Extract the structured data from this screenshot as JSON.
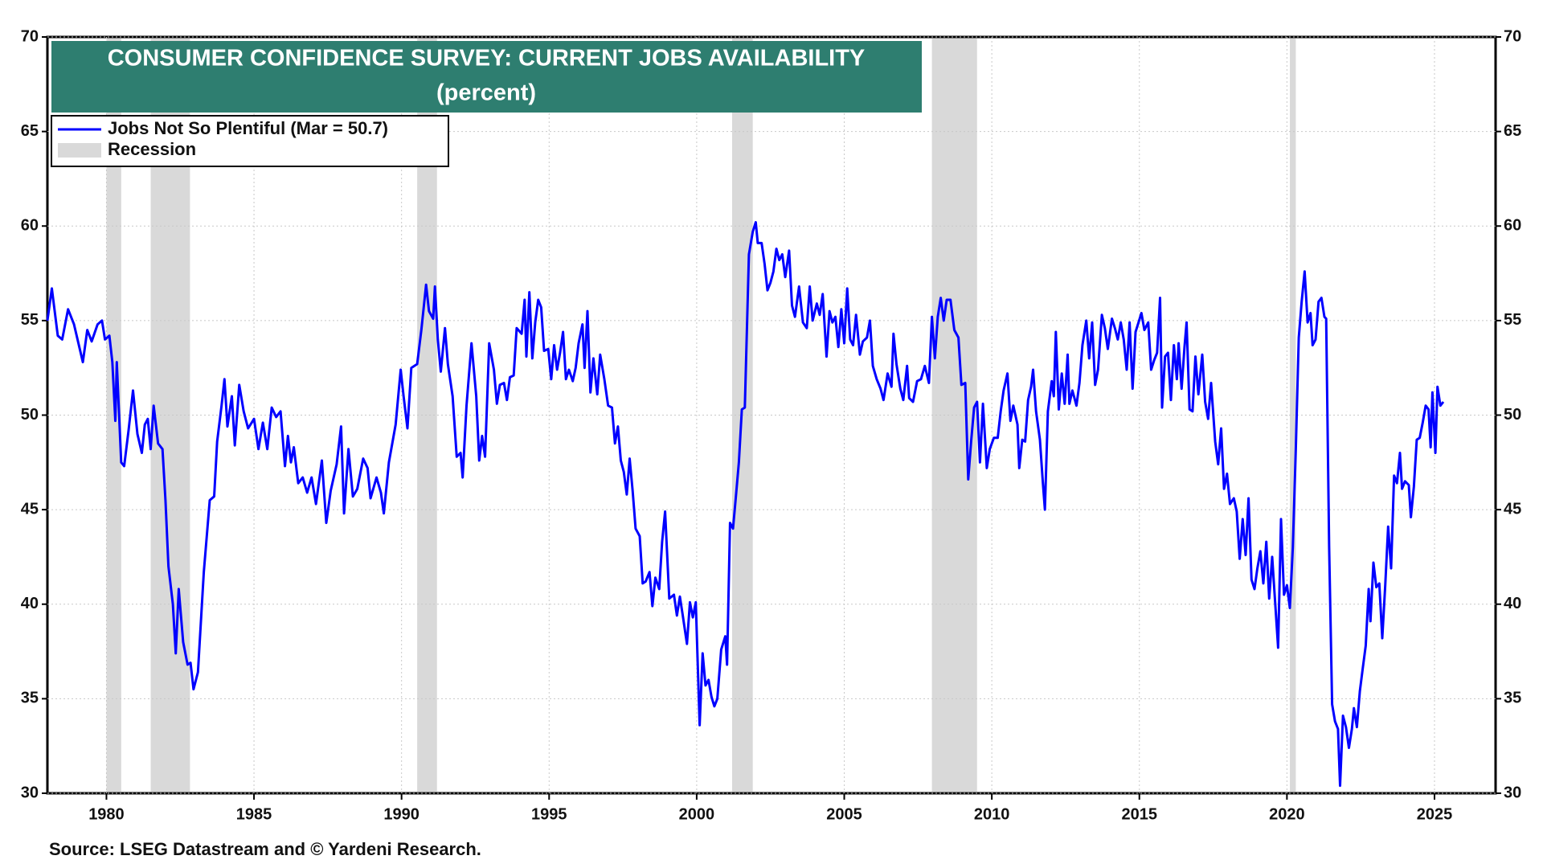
{
  "chart_data": {
    "type": "line",
    "title": "CONSUMER CONFIDENCE SURVEY: CURRENT JOBS AVAILABILITY",
    "subtitle": "(percent)",
    "source": "Source: LSEG Datastream and © Yardeni Research.",
    "legend": "upper left",
    "grid": true,
    "xlim": [
      1978,
      2027.07
    ],
    "xticks": [
      1980,
      1985,
      1990,
      1995,
      2000,
      2005,
      2010,
      2015,
      2020,
      2025
    ],
    "ylim": [
      30,
      70
    ],
    "yticks": [
      30,
      35,
      40,
      45,
      50,
      55,
      60,
      65,
      70
    ],
    "y2lim": [
      30,
      70
    ],
    "y2ticks": [
      30,
      35,
      40,
      45,
      50,
      55,
      60,
      65,
      70
    ],
    "recessions": {
      "name": "Recession",
      "color": "#d9d9d9",
      "periods": [
        [
          1980.0,
          1980.5
        ],
        [
          1981.5,
          1982.83
        ],
        [
          1990.53,
          1991.2
        ],
        [
          2001.2,
          2001.9
        ],
        [
          2007.97,
          2009.5
        ],
        [
          2020.1,
          2020.3
        ]
      ]
    },
    "x": [
      1978.0,
      1978.15,
      1978.35,
      1978.5,
      1978.7,
      1978.9,
      1979.05,
      1979.2,
      1979.35,
      1979.5,
      1979.7,
      1979.85,
      1979.95,
      1980.1,
      1980.2,
      1980.3,
      1980.35,
      1980.5,
      1980.6,
      1980.75,
      1980.9,
      1981.05,
      1981.2,
      1981.3,
      1981.4,
      1981.5,
      1981.6,
      1981.75,
      1981.9,
      1982.0,
      1982.1,
      1982.25,
      1982.35,
      1982.45,
      1982.6,
      1982.75,
      1982.85,
      1982.95,
      1983.1,
      1983.3,
      1983.5,
      1983.65,
      1983.75,
      1983.9,
      1984.0,
      1984.1,
      1984.25,
      1984.35,
      1984.5,
      1984.65,
      1984.8,
      1985.0,
      1985.15,
      1985.3,
      1985.45,
      1985.6,
      1985.75,
      1985.9,
      1986.05,
      1986.15,
      1986.25,
      1986.35,
      1986.5,
      1986.65,
      1986.8,
      1986.95,
      1987.1,
      1987.3,
      1987.45,
      1987.6,
      1987.8,
      1987.95,
      1988.05,
      1988.2,
      1988.35,
      1988.5,
      1988.7,
      1988.85,
      1988.95,
      1989.15,
      1989.3,
      1989.4,
      1989.57,
      1989.8,
      1989.97,
      1990.07,
      1990.2,
      1990.33,
      1990.53,
      1990.67,
      1990.83,
      1990.93,
      1991.07,
      1991.13,
      1991.23,
      1991.33,
      1991.47,
      1991.57,
      1991.73,
      1991.87,
      1992.0,
      1992.07,
      1992.2,
      1992.37,
      1992.53,
      1992.63,
      1992.73,
      1992.83,
      1992.97,
      1993.13,
      1993.23,
      1993.33,
      1993.47,
      1993.57,
      1993.67,
      1993.8,
      1993.9,
      1994.07,
      1994.17,
      1994.23,
      1994.33,
      1994.43,
      1994.53,
      1994.63,
      1994.73,
      1994.83,
      1994.97,
      1995.07,
      1995.17,
      1995.27,
      1995.37,
      1995.47,
      1995.57,
      1995.67,
      1995.8,
      1995.9,
      1996.0,
      1996.13,
      1996.2,
      1996.3,
      1996.4,
      1996.5,
      1996.63,
      1996.73,
      1996.87,
      1997.0,
      1997.13,
      1997.23,
      1997.33,
      1997.43,
      1997.53,
      1997.63,
      1997.73,
      1997.83,
      1997.93,
      1998.07,
      1998.17,
      1998.27,
      1998.4,
      1998.5,
      1998.6,
      1998.73,
      1998.83,
      1998.93,
      1999.07,
      1999.23,
      1999.33,
      1999.43,
      1999.53,
      1999.67,
      1999.77,
      1999.87,
      1999.97,
      2000.1,
      2000.2,
      2000.3,
      2000.4,
      2000.5,
      2000.6,
      2000.7,
      2000.83,
      2000.97,
      2001.03,
      2001.13,
      2001.23,
      2001.33,
      2001.43,
      2001.53,
      2001.63,
      2001.77,
      2001.9,
      2002.0,
      2002.07,
      2002.2,
      2002.3,
      2002.4,
      2002.5,
      2002.6,
      2002.7,
      2002.8,
      2002.9,
      2003.0,
      2003.13,
      2003.23,
      2003.33,
      2003.47,
      2003.6,
      2003.73,
      2003.83,
      2003.93,
      2004.07,
      2004.17,
      2004.27,
      2004.4,
      2004.5,
      2004.6,
      2004.7,
      2004.8,
      2004.9,
      2005.0,
      2005.1,
      2005.2,
      2005.3,
      2005.4,
      2005.53,
      2005.63,
      2005.77,
      2005.87,
      2005.97,
      2006.1,
      2006.23,
      2006.33,
      2006.47,
      2006.6,
      2006.67,
      2006.77,
      2006.9,
      2007.0,
      2007.13,
      2007.2,
      2007.33,
      2007.47,
      2007.6,
      2007.73,
      2007.87,
      2007.97,
      2008.07,
      2008.17,
      2008.27,
      2008.37,
      2008.47,
      2008.6,
      2008.73,
      2008.87,
      2008.97,
      2009.1,
      2009.2,
      2009.3,
      2009.4,
      2009.5,
      2009.6,
      2009.7,
      2009.83,
      2009.93,
      2010.07,
      2010.2,
      2010.3,
      2010.4,
      2010.53,
      2010.63,
      2010.73,
      2010.87,
      2010.93,
      2011.03,
      2011.13,
      2011.23,
      2011.33,
      2011.4,
      2011.5,
      2011.63,
      2011.73,
      2011.8,
      2011.9,
      2012.03,
      2012.1,
      2012.17,
      2012.27,
      2012.37,
      2012.47,
      2012.57,
      2012.63,
      2012.73,
      2012.87,
      2012.97,
      2013.07,
      2013.2,
      2013.3,
      2013.4,
      2013.5,
      2013.6,
      2013.73,
      2013.83,
      2013.93,
      2014.07,
      2014.17,
      2014.27,
      2014.37,
      2014.47,
      2014.57,
      2014.67,
      2014.77,
      2014.87,
      2014.97,
      2015.07,
      2015.17,
      2015.3,
      2015.4,
      2015.5,
      2015.6,
      2015.7,
      2015.77,
      2015.87,
      2015.97,
      2016.07,
      2016.17,
      2016.27,
      2016.33,
      2016.43,
      2016.53,
      2016.6,
      2016.7,
      2016.8,
      2016.9,
      2017.0,
      2017.13,
      2017.23,
      2017.33,
      2017.43,
      2017.57,
      2017.67,
      2017.77,
      2017.87,
      2017.97,
      2018.07,
      2018.2,
      2018.3,
      2018.4,
      2018.5,
      2018.6,
      2018.7,
      2018.8,
      2018.9,
      2019.0,
      2019.1,
      2019.2,
      2019.3,
      2019.4,
      2019.5,
      2019.6,
      2019.7,
      2019.8,
      2019.9,
      2020.0,
      2020.1,
      2020.2,
      2020.3,
      2020.4,
      2020.5,
      2020.6,
      2020.7,
      2020.8,
      2020.87,
      2020.97,
      2021.07,
      2021.17,
      2021.27,
      2021.33,
      2021.43,
      2021.53,
      2021.63,
      2021.73,
      2021.8,
      2021.9,
      2022.0,
      2022.1,
      2022.2,
      2022.27,
      2022.37,
      2022.47,
      2022.57,
      2022.67,
      2022.77,
      2022.83,
      2022.93,
      2023.03,
      2023.13,
      2023.23,
      2023.33,
      2023.43,
      2023.53,
      2023.63,
      2023.73,
      2023.83,
      2023.9,
      2024.0,
      2024.13,
      2024.2,
      2024.3,
      2024.4,
      2024.5,
      2024.6,
      2024.7,
      2024.8,
      2024.87,
      2024.93,
      2025.03,
      2025.1,
      2025.2,
      2025.3
    ],
    "series": [
      {
        "name": "Jobs Not So Plentiful (Mar = 50.7)",
        "color": "#0000ff",
        "values": [
          55,
          56.7,
          54.2,
          54,
          55.6,
          54.8,
          53.8,
          52.8,
          54.5,
          53.9,
          54.8,
          55,
          54,
          54.2,
          52.8,
          49.7,
          52.8,
          47.5,
          47.3,
          49.2,
          51.3,
          49,
          48,
          49.5,
          49.8,
          48.2,
          50.5,
          48.5,
          48.2,
          45.5,
          42,
          40,
          37.4,
          40.8,
          38,
          36.8,
          36.9,
          35.5,
          36.4,
          41.7,
          45.5,
          45.7,
          48.6,
          50.5,
          51.9,
          49.4,
          51,
          48.4,
          51.6,
          50.2,
          49.3,
          49.8,
          48.2,
          49.6,
          48.2,
          50.4,
          49.9,
          50.2,
          47.3,
          48.9,
          47.5,
          48.3,
          46.4,
          46.7,
          45.9,
          46.7,
          45.3,
          47.6,
          44.3,
          46,
          47.4,
          49.4,
          44.8,
          48.2,
          45.7,
          46.1,
          47.7,
          47.2,
          45.6,
          46.7,
          45.9,
          44.8,
          47.5,
          49.5,
          52.4,
          51,
          49.3,
          52.5,
          52.7,
          54.5,
          56.9,
          55.5,
          55.1,
          56.8,
          54,
          52.3,
          54.6,
          52.7,
          51,
          47.8,
          48,
          46.7,
          50.5,
          53.8,
          51,
          47.6,
          48.9,
          47.8,
          53.8,
          52.4,
          50.6,
          51.6,
          51.7,
          50.8,
          52,
          52.1,
          54.6,
          54.3,
          56.1,
          53.1,
          56.5,
          53,
          54.9,
          56.1,
          55.7,
          53.4,
          53.5,
          51.9,
          53.7,
          52.4,
          53.3,
          54.4,
          51.9,
          52.4,
          51.8,
          52.5,
          53.8,
          54.8,
          52.5,
          55.5,
          51.2,
          53,
          51.1,
          53.2,
          51.9,
          50.5,
          50.4,
          48.5,
          49.4,
          47.6,
          47,
          45.8,
          47.7,
          46,
          44,
          43.6,
          41.1,
          41.2,
          41.7,
          39.9,
          41.4,
          40.8,
          43.3,
          44.9,
          40.3,
          40.5,
          39.4,
          40.4,
          39.4,
          37.9,
          40.1,
          39.3,
          40.1,
          33.6,
          37.4,
          35.7,
          36,
          35.1,
          34.6,
          35,
          37.6,
          38.3,
          36.8,
          44.3,
          44,
          45.7,
          47.5,
          50.3,
          50.4,
          58.5,
          59.7,
          60.2,
          59.1,
          59.1,
          58,
          56.6,
          57,
          57.6,
          58.8,
          58.2,
          58.5,
          57.3,
          58.7,
          55.8,
          55.2,
          56.8,
          54.9,
          54.6,
          56.8,
          55,
          55.9,
          55.3,
          56.4,
          53.1,
          55.5,
          54.9,
          55.2,
          53.6,
          55.6,
          53.8,
          56.7,
          54,
          53.7,
          55.3,
          53.2,
          53.9,
          54.1,
          55,
          52.6,
          51.9,
          51.4,
          50.8,
          52.2,
          51.5,
          54.3,
          52.7,
          51.4,
          50.8,
          52.6,
          50.9,
          50.7,
          51.8,
          51.9,
          52.6,
          51.7,
          55.2,
          53,
          55.2,
          56.2,
          55,
          56.1,
          56.1,
          54.5,
          54.1,
          51.6,
          51.7,
          46.6,
          48.6,
          50.4,
          50.7,
          47.5,
          50.6,
          47.2,
          48.2,
          48.8,
          48.8,
          50.2,
          51.3,
          52.2,
          49.7,
          50.5,
          49.5,
          47.2,
          48.7,
          48.6,
          50.8,
          51.5,
          52.4,
          50.2,
          48.7,
          46.4,
          45,
          50.2,
          51.8,
          51,
          54.4,
          50.3,
          52.2,
          50.6,
          53.2,
          50.6,
          51.3,
          50.5,
          51.7,
          53.7,
          55,
          53,
          54.9,
          51.6,
          52.4,
          55.3,
          54.6,
          53.5,
          55.1,
          54.6,
          54,
          54.9,
          54,
          52.4,
          54.9,
          51.4,
          54.4,
          54.9,
          55.4,
          54.5,
          54.9,
          52.4,
          52.9,
          53.3,
          56.2,
          50.4,
          53.1,
          53.3,
          50.8,
          53.7,
          51.9,
          53.8,
          51.4,
          53.6,
          54.9,
          50.3,
          50.2,
          53.1,
          51.1,
          53.2,
          50.7,
          49.8,
          51.7,
          48.6,
          47.4,
          49.3,
          46.1,
          46.9,
          45.3,
          45.6,
          44.9,
          42.4,
          44.5,
          42.6,
          45.6,
          41.3,
          40.8,
          41.9,
          42.8,
          41.1,
          43.3,
          40.3,
          42.5,
          40.1,
          37.7,
          44.5,
          40.5,
          41,
          39.8,
          43,
          48.2,
          54.1,
          56,
          57.6,
          54.9,
          55.4,
          53.7,
          54,
          56,
          56.2,
          55.2,
          55.1,
          43,
          34.7,
          33.8,
          33.4,
          30.4,
          34.1,
          33.5,
          32.4,
          33.4,
          34.5,
          33.5,
          35.4,
          36.6,
          37.8,
          40.8,
          39.1,
          42.2,
          40.9,
          41.1,
          38.2,
          41,
          44.1,
          41.9,
          46.8,
          46.4,
          48,
          46.1,
          46.5,
          46.3,
          44.6,
          46.2,
          48.7,
          48.8,
          49.6,
          50.5,
          50.3,
          48.3,
          51.2,
          48,
          51.5,
          50.5,
          50.7
        ]
      }
    ]
  }
}
